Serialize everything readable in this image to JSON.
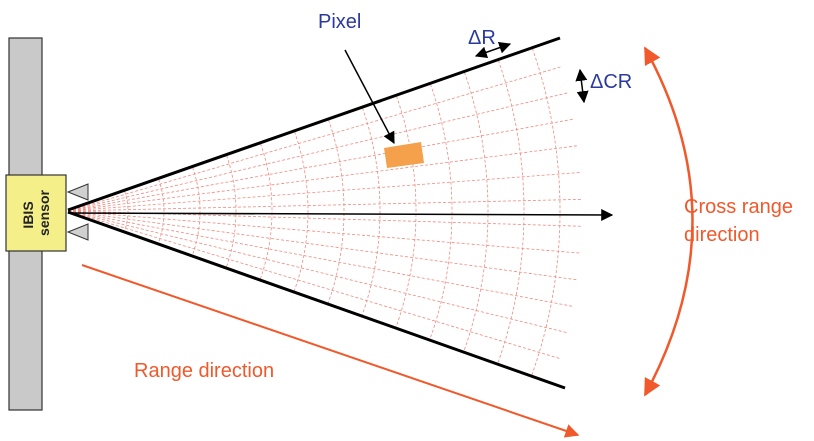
{
  "labels": {
    "pixel": "Pixel",
    "delta_r": "ΔR",
    "delta_cr": "ΔCR",
    "cross_range": [
      "Cross range",
      "direction"
    ],
    "range_direction": "Range direction",
    "sensor": [
      "IBIS",
      "sensor"
    ]
  }
}
